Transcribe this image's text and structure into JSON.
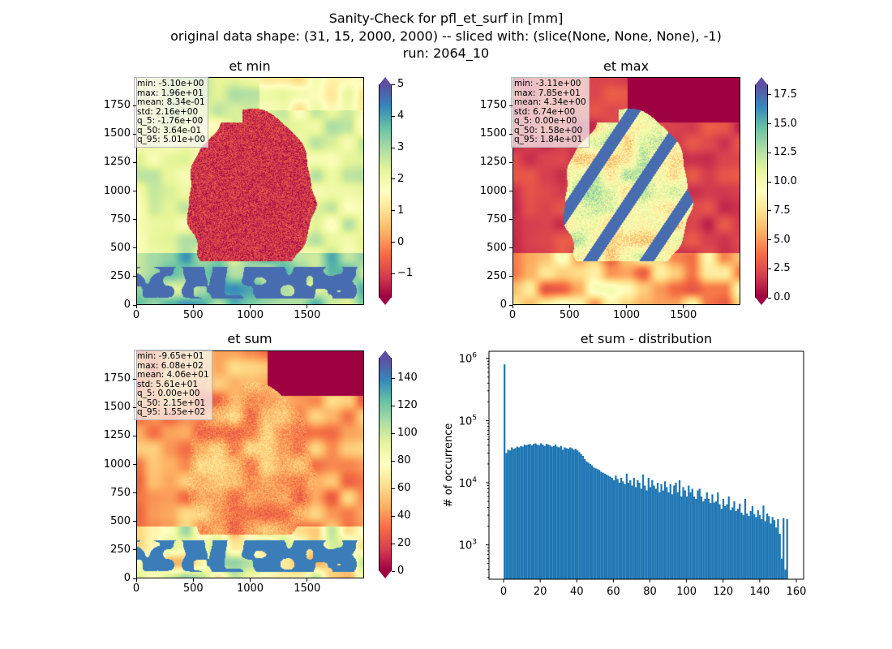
{
  "figure": {
    "title_line1": "Sanity-Check for pfl_et_surf in [mm]",
    "title_line2": "original data shape: (31, 15, 2000, 2000) -- sliced with: (slice(None, None, None), -1)",
    "title_line3": "run: 2064_10"
  },
  "colormap": "Spectral",
  "colors": {
    "bar": "#1f77b4",
    "low": "#9e0142",
    "high": "#5e4fa2"
  },
  "chart_data": [
    {
      "type": "heatmap",
      "title": "et min",
      "stats": "min: -5.10e+00\nmax: 1.96e+01\nmean: 8.34e-01\nstd: 2.16e+00\nq_5: -1.76e+00\nq_50: 3.64e-01\nq_95: 5.01e+00",
      "xticks": [
        "0",
        "500",
        "1000",
        "1500"
      ],
      "yticks": [
        "0",
        "250",
        "500",
        "750",
        "1000",
        "1250",
        "1500",
        "1750"
      ],
      "xlim": [
        0,
        2000
      ],
      "ylim": [
        0,
        2000
      ],
      "colorbar_ticks": [
        "5",
        "4",
        "3",
        "2",
        "1",
        "0",
        "−1"
      ],
      "colorbar_range": [
        -1.76,
        5.01
      ],
      "colorbar_extend": "both"
    },
    {
      "type": "heatmap",
      "title": "et max",
      "stats": "min: -3.11e+00\nmax: 7.85e+01\nmean: 4.34e+00\nstd: 6.74e+00\nq_5: 0.00e+00\nq_50: 1.58e+00\nq_95: 1.84e+01",
      "xticks": [
        "0",
        "500",
        "1000",
        "1500"
      ],
      "yticks": [
        "0",
        "250",
        "500",
        "750",
        "1000",
        "1250",
        "1500",
        "1750"
      ],
      "xlim": [
        0,
        2000
      ],
      "ylim": [
        0,
        2000
      ],
      "colorbar_ticks": [
        "17.5",
        "15.0",
        "12.5",
        "10.0",
        "7.5",
        "5.0",
        "2.5",
        "0.0"
      ],
      "colorbar_range": [
        0.0,
        18.4
      ],
      "colorbar_extend": "both"
    },
    {
      "type": "heatmap",
      "title": "et sum",
      "stats": "min: -9.65e+01\nmax: 6.08e+02\nmean: 4.06e+01\nstd: 5.61e+01\nq_5: 0.00e+00\nq_50: 2.15e+01\nq_95: 1.55e+02",
      "xticks": [
        "0",
        "500",
        "1000",
        "1500"
      ],
      "yticks": [
        "0",
        "250",
        "500",
        "750",
        "1000",
        "1250",
        "1500",
        "1750"
      ],
      "xlim": [
        0,
        2000
      ],
      "ylim": [
        0,
        2000
      ],
      "colorbar_ticks": [
        "140",
        "120",
        "100",
        "80",
        "60",
        "40",
        "20",
        "0"
      ],
      "colorbar_range": [
        0,
        155
      ],
      "colorbar_extend": "both"
    },
    {
      "type": "bar",
      "title": "et sum - distribution",
      "xlabel": "",
      "ylabel": "# of occurrence",
      "yscale": "log",
      "xticks": [
        "0",
        "20",
        "40",
        "60",
        "80",
        "100",
        "120",
        "140",
        "160"
      ],
      "yticks_base": [
        "10",
        "10",
        "10",
        "10"
      ],
      "yticks_exp": [
        "3",
        "4",
        "5",
        "6"
      ],
      "xlim": [
        -8,
        164
      ],
      "ylim": [
        280,
        1300000
      ],
      "bin_start": 0,
      "bin_end": 155.5,
      "counts": [
        800000,
        30000,
        34000,
        33000,
        37000,
        35000,
        36000,
        38000,
        37000,
        39000,
        38000,
        41000,
        40000,
        41000,
        42000,
        40000,
        42000,
        43000,
        41000,
        40000,
        43000,
        41000,
        39000,
        42000,
        41000,
        40000,
        38000,
        39000,
        41000,
        38000,
        37000,
        39000,
        34000,
        37000,
        36000,
        35000,
        37000,
        36000,
        34000,
        35000,
        33000,
        31000,
        29000,
        27000,
        24000,
        22000,
        21000,
        20000,
        19000,
        17500,
        17000,
        16500,
        16000,
        15000,
        14500,
        14000,
        13500,
        13000,
        12500,
        12000,
        11000,
        13000,
        11500,
        10000,
        12000,
        10500,
        9500,
        14000,
        10000,
        11000,
        9000,
        12000,
        8500,
        11000,
        10000,
        8000,
        13500,
        9000,
        7500,
        12000,
        8500,
        11000,
        9000,
        8000,
        10000,
        7000,
        9500,
        7500,
        10500,
        8500,
        7000,
        9500,
        6500,
        9000,
        10000,
        7000,
        11000,
        6000,
        8500,
        7500,
        6000,
        9000,
        7000,
        8000,
        6000,
        5500,
        7500,
        8000,
        6000,
        5000,
        5500,
        7000,
        5500,
        4700,
        6500,
        4800,
        5000,
        7000,
        4500,
        3800,
        5500,
        4200,
        4500,
        6000,
        3600,
        4000,
        5000,
        3500,
        3800,
        4600,
        3300,
        3000,
        5500,
        3200,
        2900,
        3500,
        4200,
        3100,
        2800,
        3600,
        3000,
        2600,
        4300,
        2400,
        3200,
        2900,
        2200,
        2800,
        2500,
        1900,
        2600,
        1500,
        600,
        2700,
        400,
        2600
      ]
    }
  ]
}
